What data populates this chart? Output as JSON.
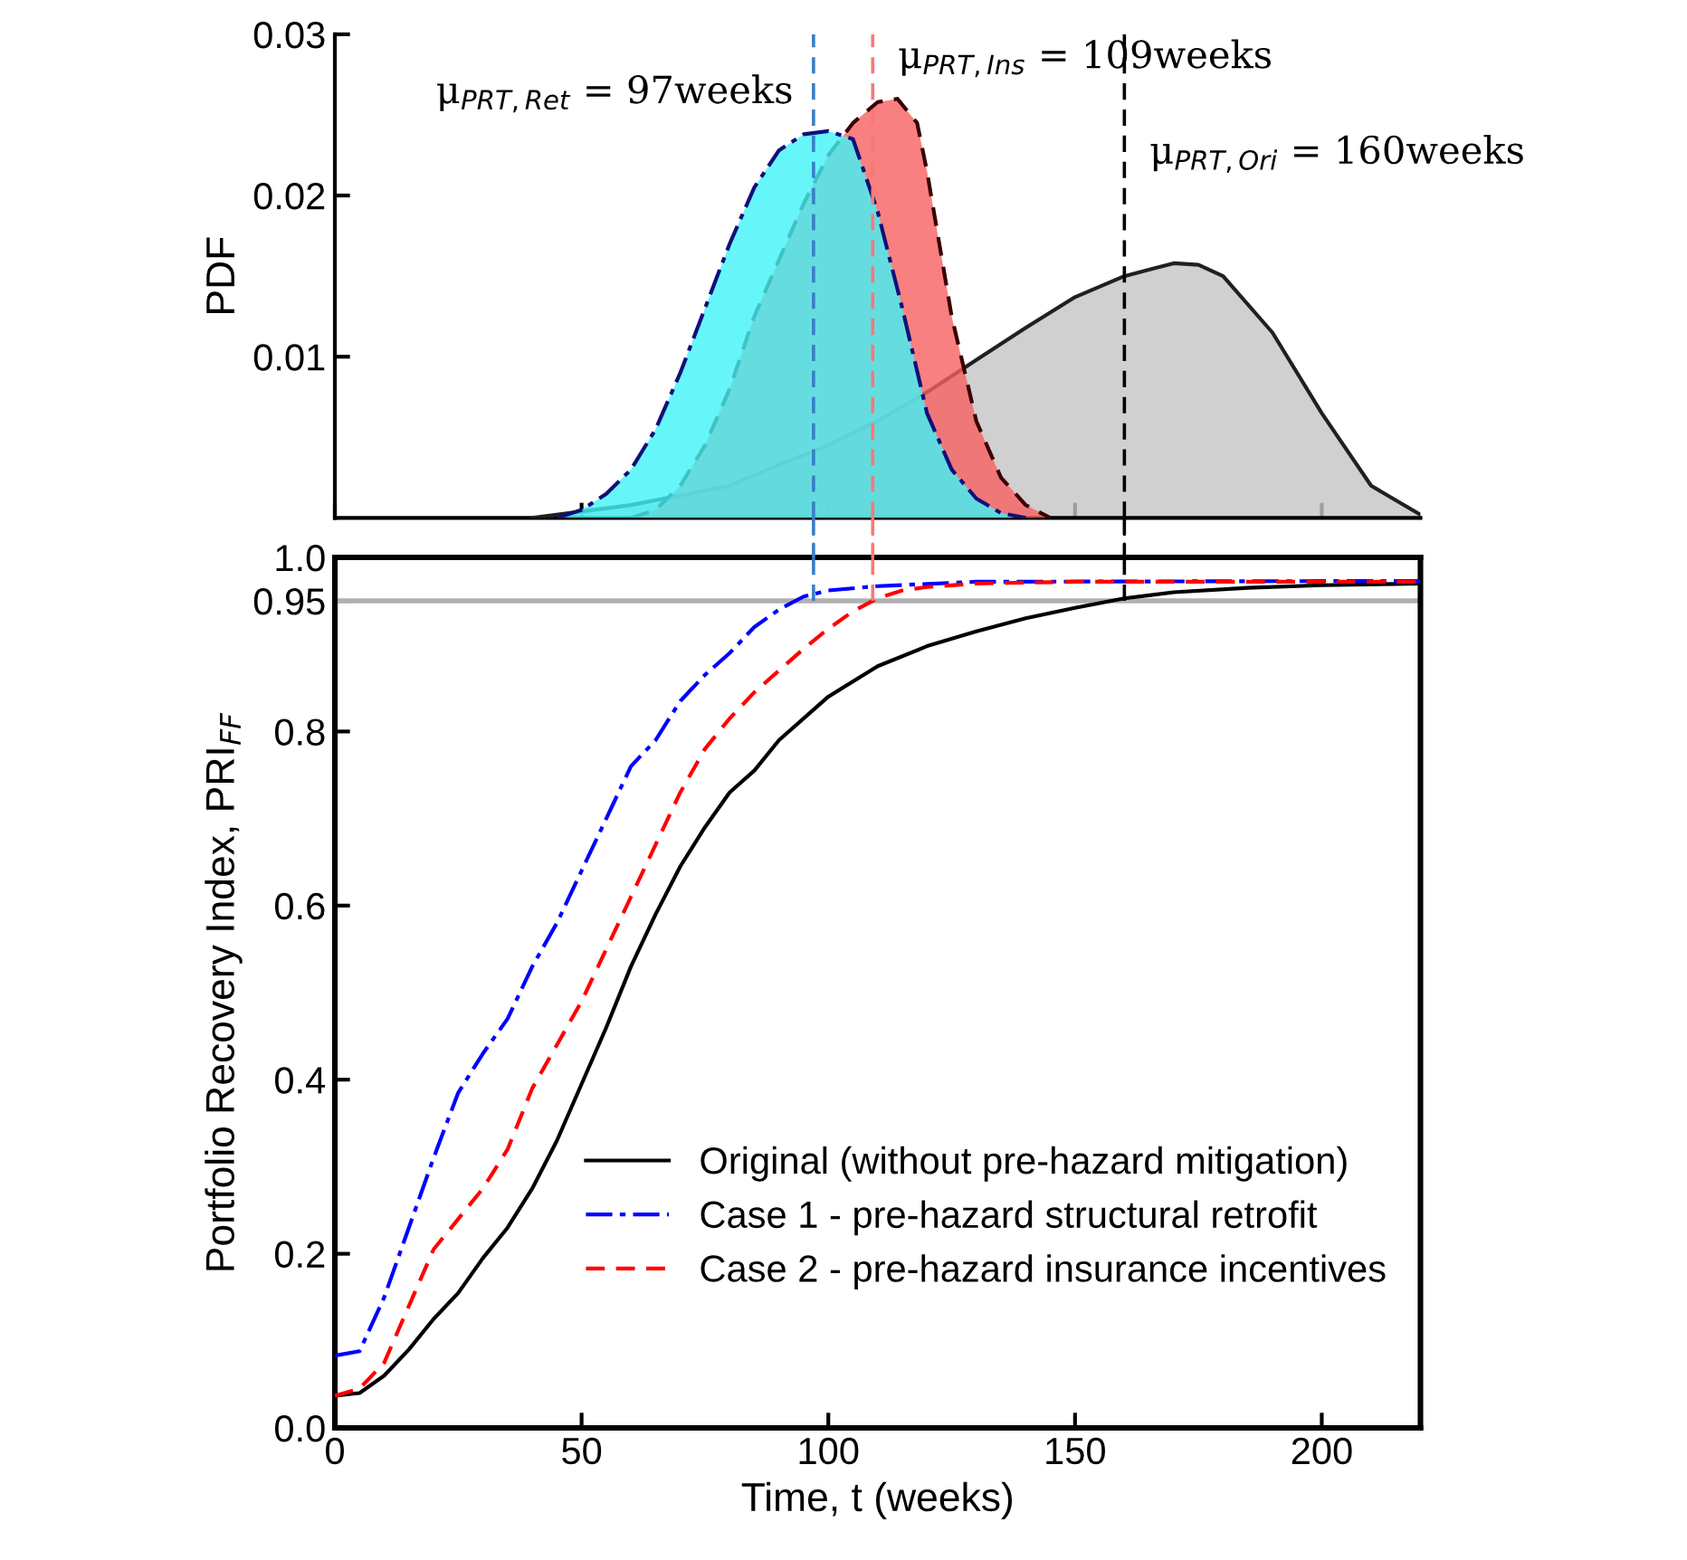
{
  "chart_data": [
    {
      "type": "area",
      "ylabel": "PDF",
      "xlim": [
        0,
        220
      ],
      "xticks": [
        {
          "value": 0,
          "label": null
        },
        {
          "value": 50,
          "label": null
        },
        {
          "value": 100,
          "label": null
        },
        {
          "value": 150,
          "label": null
        },
        {
          "value": 200,
          "label": null
        }
      ],
      "ylim": [
        0,
        0.03
      ],
      "yticks": [
        0.01,
        0.02,
        0.03
      ],
      "tick_labels": "y",
      "grid": false,
      "series": [
        {
          "color": "#c4c4c4",
          "line_style": "solid",
          "x": [
            40,
            60,
            80,
            90,
            100,
            110,
            120,
            130,
            140,
            150,
            160,
            170,
            175,
            180,
            190,
            200,
            210,
            220
          ],
          "values": [
            0,
            0.0008,
            0.002,
            0.0033,
            0.0045,
            0.006,
            0.0078,
            0.0098,
            0.0118,
            0.0137,
            0.015,
            0.0158,
            0.0157,
            0.015,
            0.0115,
            0.0065,
            0.002,
            0.0002
          ]
        },
        {
          "color": "#f86060",
          "line_style": "dashed",
          "x": [
            60,
            65,
            70,
            75,
            80,
            85,
            90,
            95,
            100,
            105,
            110,
            114,
            118,
            120,
            125,
            130,
            135,
            140,
            145
          ],
          "values": [
            0,
            0.0005,
            0.002,
            0.0045,
            0.008,
            0.0125,
            0.016,
            0.0195,
            0.0225,
            0.0245,
            0.0258,
            0.026,
            0.0245,
            0.0215,
            0.0125,
            0.006,
            0.0025,
            0.0008,
            0
          ]
        },
        {
          "color": "#40f4f8",
          "line_style": "dashdot",
          "x": [
            45,
            50,
            55,
            60,
            65,
            70,
            75,
            80,
            85,
            90,
            95,
            100,
            105,
            110,
            115,
            120,
            125,
            130,
            135,
            140
          ],
          "values": [
            0,
            0.0005,
            0.0015,
            0.003,
            0.0055,
            0.009,
            0.013,
            0.017,
            0.0205,
            0.0228,
            0.0238,
            0.024,
            0.0235,
            0.019,
            0.013,
            0.0065,
            0.003,
            0.0012,
            0.0003,
            0
          ]
        }
      ],
      "ref_lines": [
        {
          "axis": "x",
          "value": 97,
          "label": "μ$_{PRT,Ret}$ = 97weeks",
          "color": "#3a7ec8",
          "line_style": "dashed"
        },
        {
          "axis": "x",
          "value": 109,
          "label": "μ$_{PRT,Ins}$ = 109weeks",
          "color": "#f87878",
          "line_style": "dashed"
        },
        {
          "axis": "x",
          "value": 160,
          "label": "μ$_{PRT,Ori}$ = 160weeks",
          "color": "#000000",
          "line_style": "dashed"
        }
      ]
    },
    {
      "type": "line",
      "xlabel": "Time, t (weeks)",
      "ylabel": "Portfolio Recovery Index, PRI$_{FF}$",
      "xlim": [
        0,
        220
      ],
      "xticks": [
        0,
        50,
        100,
        150,
        200
      ],
      "ylim": [
        0,
        1.0
      ],
      "yticks": [
        {
          "value": 0,
          "label": "0.0"
        },
        0.2,
        0.4,
        0.6,
        0.8,
        0.95,
        {
          "value": 1.0,
          "label": "1.0"
        }
      ],
      "legend": "bottom right",
      "grid": false,
      "series": [
        {
          "name": "Original (without pre-hazard mitigation)",
          "color": "#000000",
          "line_style": "solid",
          "x": [
            0,
            5,
            10,
            15,
            20,
            25,
            30,
            35,
            40,
            45,
            50,
            55,
            60,
            65,
            70,
            75,
            80,
            85,
            90,
            100,
            110,
            120,
            130,
            140,
            150,
            160,
            170,
            185,
            200,
            220
          ],
          "values": [
            0.037,
            0.04,
            0.06,
            0.09,
            0.125,
            0.155,
            0.195,
            0.23,
            0.275,
            0.33,
            0.395,
            0.46,
            0.53,
            0.59,
            0.645,
            0.69,
            0.73,
            0.755,
            0.79,
            0.84,
            0.875,
            0.898,
            0.915,
            0.93,
            0.942,
            0.953,
            0.96,
            0.965,
            0.968,
            0.97
          ]
        },
        {
          "name": "Case 1 - pre-hazard structural retrofit",
          "color": "#0000ff",
          "line_style": "dashdot",
          "x": [
            0,
            5,
            10,
            15,
            20,
            25,
            30,
            35,
            40,
            45,
            50,
            55,
            60,
            65,
            70,
            75,
            80,
            85,
            90,
            95,
            100,
            110,
            130,
            220
          ],
          "values": [
            0.083,
            0.088,
            0.15,
            0.23,
            0.31,
            0.385,
            0.43,
            0.47,
            0.53,
            0.58,
            0.64,
            0.7,
            0.76,
            0.79,
            0.835,
            0.865,
            0.89,
            0.92,
            0.94,
            0.955,
            0.962,
            0.967,
            0.972,
            0.973
          ]
        },
        {
          "name": "Case 2 - pre-hazard insurance incentives",
          "color": "#ff0000",
          "line_style": "dashed",
          "x": [
            0,
            5,
            10,
            15,
            20,
            25,
            30,
            35,
            40,
            45,
            50,
            55,
            60,
            65,
            70,
            75,
            80,
            85,
            90,
            95,
            100,
            105,
            110,
            115,
            120,
            130,
            150,
            220
          ],
          "values": [
            0.037,
            0.045,
            0.075,
            0.14,
            0.205,
            0.24,
            0.275,
            0.32,
            0.39,
            0.44,
            0.49,
            0.55,
            0.61,
            0.67,
            0.73,
            0.78,
            0.815,
            0.845,
            0.87,
            0.895,
            0.918,
            0.938,
            0.953,
            0.962,
            0.966,
            0.97,
            0.972,
            0.972
          ]
        },
        {
          "color": "#3a7ec8",
          "line_style": "dashed",
          "x": [
            97,
            97
          ],
          "values": [
            0.95,
            1.0
          ]
        },
        {
          "color": "#f87878",
          "line_style": "dashed",
          "x": [
            109,
            109
          ],
          "values": [
            0.95,
            1.0
          ]
        },
        {
          "color": "#000000",
          "line_style": "dashed",
          "x": [
            160,
            160
          ],
          "values": [
            0.95,
            1.0
          ]
        }
      ],
      "ref_lines": [
        {
          "axis": "y",
          "value": 0.95,
          "label": null,
          "color": "#b0b0b0",
          "line_style": "solid"
        }
      ]
    }
  ]
}
